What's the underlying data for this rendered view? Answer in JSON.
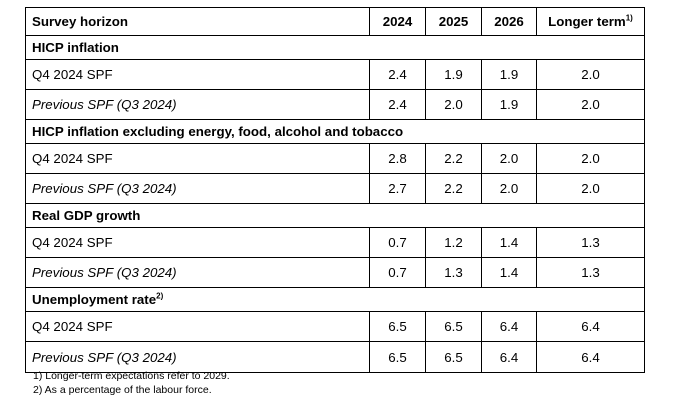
{
  "table": {
    "header": {
      "label": "Survey horizon",
      "years": [
        "2024",
        "2025",
        "2026"
      ],
      "longer_term": "Longer term",
      "longer_term_note": "1)"
    },
    "sections": [
      {
        "title": "HICP inflation",
        "title_note": "",
        "rows": [
          {
            "label": "Q4 2024 SPF",
            "values": [
              "2.4",
              "1.9",
              "1.9",
              "2.0"
            ]
          },
          {
            "label": "Previous SPF (Q3 2024)",
            "values": [
              "2.4",
              "2.0",
              "1.9",
              "2.0"
            ]
          }
        ]
      },
      {
        "title": "HICP inflation excluding energy, food, alcohol and tobacco",
        "title_note": "",
        "rows": [
          {
            "label": "Q4 2024 SPF",
            "values": [
              "2.8",
              "2.2",
              "2.0",
              "2.0"
            ]
          },
          {
            "label": "Previous SPF (Q3 2024)",
            "values": [
              "2.7",
              "2.2",
              "2.0",
              "2.0"
            ]
          }
        ]
      },
      {
        "title": "Real GDP growth",
        "title_note": "",
        "rows": [
          {
            "label": "Q4 2024 SPF",
            "values": [
              "0.7",
              "1.2",
              "1.4",
              "1.3"
            ]
          },
          {
            "label": "Previous SPF (Q3 2024)",
            "values": [
              "0.7",
              "1.3",
              "1.4",
              "1.3"
            ]
          }
        ]
      },
      {
        "title": "Unemployment rate",
        "title_note": "2)",
        "rows": [
          {
            "label": "Q4 2024 SPF",
            "values": [
              "6.5",
              "6.5",
              "6.4",
              "6.4"
            ]
          },
          {
            "label": "Previous SPF (Q3 2024)",
            "values": [
              "6.5",
              "6.5",
              "6.4",
              "6.4"
            ]
          }
        ]
      }
    ]
  },
  "footnotes": [
    "1) Longer-term expectations refer to 2029.",
    "2) As a percentage of the labour force."
  ]
}
